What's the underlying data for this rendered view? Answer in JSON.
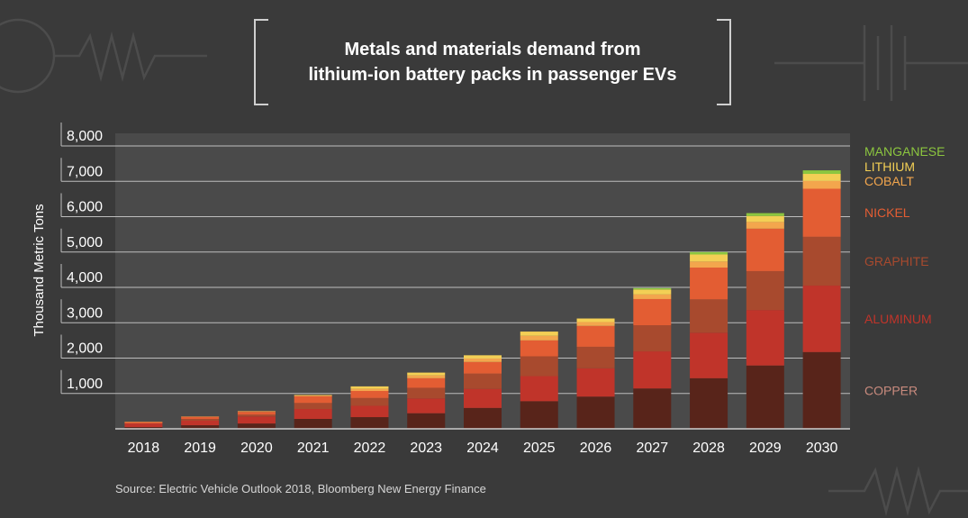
{
  "title_line1": "Metals and materials demand from",
  "title_line2": "lithium-ion battery packs in passenger EVs",
  "source": "Source: Electric Vehicle Outlook 2018, Bloomberg New Energy Finance",
  "colors": {
    "background": "#3a3a3a",
    "plot_background": "#4a4a4a",
    "copper": "#58241a",
    "aluminum": "#c0342a",
    "graphite": "#a84a2e",
    "nickel": "#e35d33",
    "cobalt": "#f3a64d",
    "lithium": "#f3cf55",
    "manganese": "#8cc63f"
  },
  "chart_data": {
    "type": "bar",
    "stacked": true,
    "title": "Metals and materials demand from lithium-ion battery packs in passenger EVs",
    "xlabel": "",
    "ylabel": "Thousand Metric Tons",
    "ylim": [
      0,
      8000
    ],
    "y_ticks": [
      "1,000",
      "2,000",
      "3,000",
      "4,000",
      "5,000",
      "6,000",
      "7,000",
      "8,000"
    ],
    "grid": true,
    "legend_placement": "right, aligned with the last bar",
    "categories": [
      "2018",
      "2019",
      "2020",
      "2021",
      "2022",
      "2023",
      "2024",
      "2025",
      "2026",
      "2027",
      "2028",
      "2029",
      "2030"
    ],
    "series": [
      {
        "name": "COPPER",
        "color": "#58241a",
        "values": [
          50,
          100,
          150,
          280,
          330,
          440,
          590,
          780,
          910,
          1140,
          1430,
          1790,
          2170
        ]
      },
      {
        "name": "ALUMINUM",
        "color": "#c0342a",
        "values": [
          100,
          130,
          200,
          280,
          320,
          420,
          540,
          710,
          800,
          1050,
          1290,
          1570,
          1880
        ]
      },
      {
        "name": "GRAPHITE",
        "color": "#a84a2e",
        "values": [
          0,
          50,
          50,
          170,
          220,
          300,
          430,
          560,
          610,
          740,
          940,
          1100,
          1380
        ]
      },
      {
        "name": "NICKEL",
        "color": "#e35d33",
        "values": [
          40,
          60,
          80,
          190,
          200,
          270,
          330,
          450,
          590,
          740,
          900,
          1200,
          1360
        ]
      },
      {
        "name": "COBALT",
        "color": "#f3a64d",
        "values": [
          10,
          10,
          20,
          30,
          60,
          80,
          100,
          130,
          110,
          130,
          170,
          190,
          220
        ]
      },
      {
        "name": "LITHIUM",
        "color": "#f3cf55",
        "values": [
          0,
          0,
          0,
          10,
          70,
          80,
          90,
          120,
          100,
          140,
          200,
          170,
          200
        ]
      },
      {
        "name": "MANGANESE",
        "color": "#8cc63f",
        "values": [
          0,
          0,
          0,
          0,
          0,
          0,
          0,
          0,
          0,
          40,
          70,
          80,
          100
        ]
      }
    ],
    "legend_order": [
      "MANGANESE",
      "LITHIUM",
      "COBALT",
      "NICKEL",
      "GRAPHITE",
      "ALUMINUM",
      "COPPER"
    ]
  }
}
